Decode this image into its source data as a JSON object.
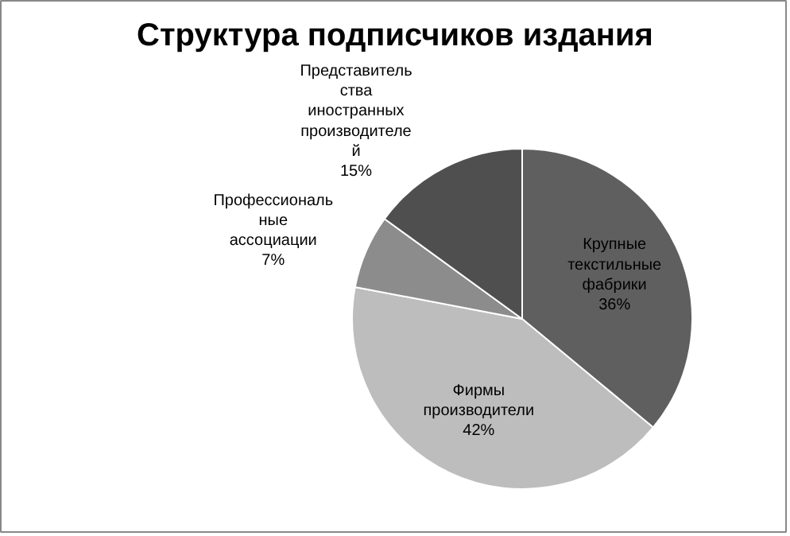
{
  "chart_data": {
    "type": "pie",
    "title": "Структура подписчиков издания",
    "categories": [
      "Крупные текстильные фабрики",
      "Фирмы производители",
      "Профессиональные ассоциации",
      "Представительства иностранных производителей"
    ],
    "values": [
      36,
      42,
      7,
      15
    ],
    "value_labels": [
      "36%",
      "42%",
      "7%",
      "15%"
    ],
    "colors": [
      "#5f5f5f",
      "#bdbdbd",
      "#8c8c8c",
      "#4f4f4f"
    ]
  }
}
